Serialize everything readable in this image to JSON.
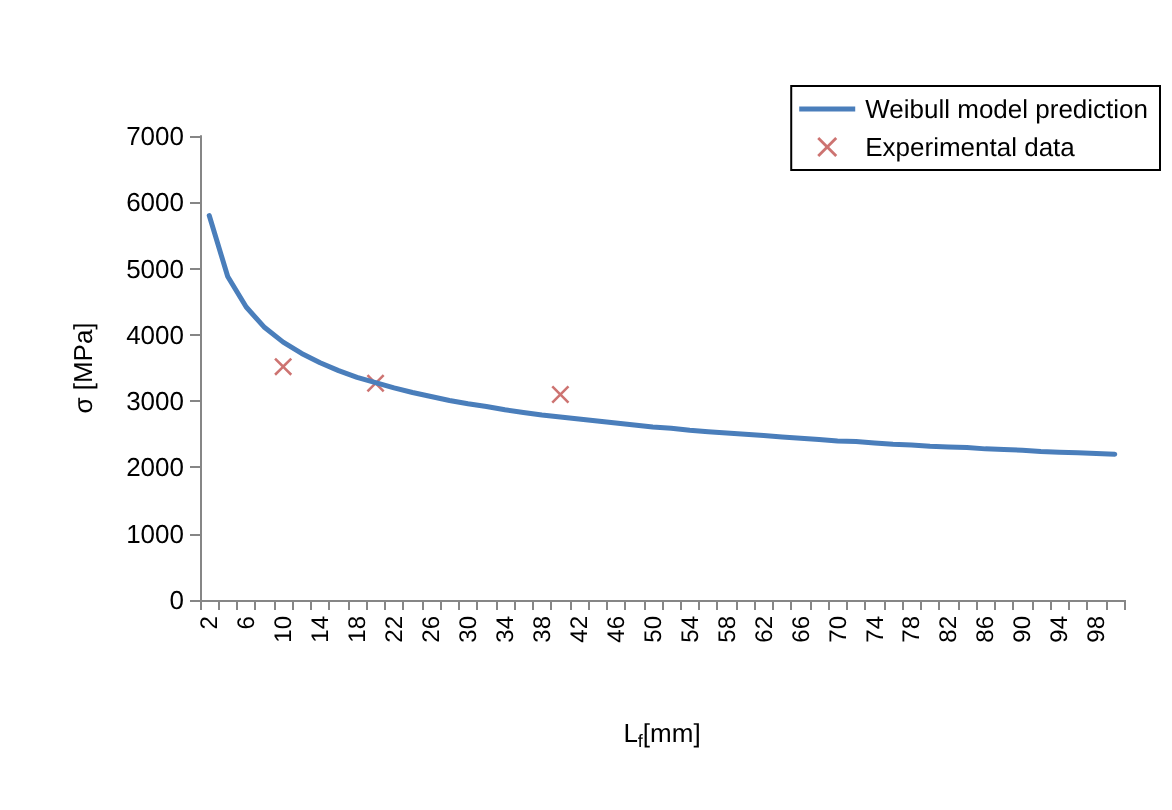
{
  "chart_data": {
    "type": "line",
    "xlabel": "L$_{f}$[mm]",
    "ylabel": "σ [MPa]",
    "categories": [
      "2",
      null,
      "6",
      null,
      "10",
      null,
      "14",
      null,
      "18",
      null,
      "22",
      null,
      "26",
      null,
      "30",
      null,
      "34",
      null,
      "38",
      null,
      "42",
      null,
      "46",
      null,
      "50",
      null,
      "54",
      null,
      "58",
      null,
      "62",
      null,
      "66",
      null,
      "70",
      null,
      "74",
      null,
      "78",
      null,
      "82",
      null,
      "86",
      null,
      "90",
      null,
      "94",
      null,
      "98",
      null
    ],
    "ylim": [
      0,
      7000
    ],
    "yticks": [
      0,
      1000,
      2000,
      3000,
      4000,
      5000,
      6000,
      7000
    ],
    "grid": false,
    "legend": "top right",
    "series": [
      {
        "name": "Weibull model prediction",
        "marker": "none",
        "color": "#4a7ebb",
        "values": [
          5800,
          4880,
          4420,
          4110,
          3890,
          3720,
          3580,
          3460,
          3360,
          3280,
          3200,
          3130,
          3070,
          3010,
          2960,
          2920,
          2870,
          2830,
          2790,
          2760,
          2730,
          2700,
          2670,
          2640,
          2610,
          2590,
          2560,
          2540,
          2520,
          2500,
          2480,
          2460,
          2440,
          2420,
          2400,
          2390,
          2370,
          2350,
          2340,
          2320,
          2310,
          2300,
          2280,
          2270,
          2260,
          2240,
          2230,
          2220,
          2210,
          2200
        ]
      },
      {
        "name": "Experimental data",
        "type": "scatter",
        "marker": "cross",
        "color": "#c0504d",
        "values": [
          null,
          null,
          null,
          null,
          3520,
          null,
          null,
          null,
          null,
          3270,
          null,
          null,
          null,
          null,
          null,
          null,
          null,
          null,
          null,
          3100,
          null,
          null,
          null,
          null,
          null,
          null,
          null,
          null,
          null,
          null,
          null,
          null,
          null,
          null,
          null,
          null,
          null,
          null,
          null,
          null,
          null,
          null,
          null,
          null,
          null,
          null,
          null,
          null,
          null,
          null
        ]
      }
    ]
  }
}
